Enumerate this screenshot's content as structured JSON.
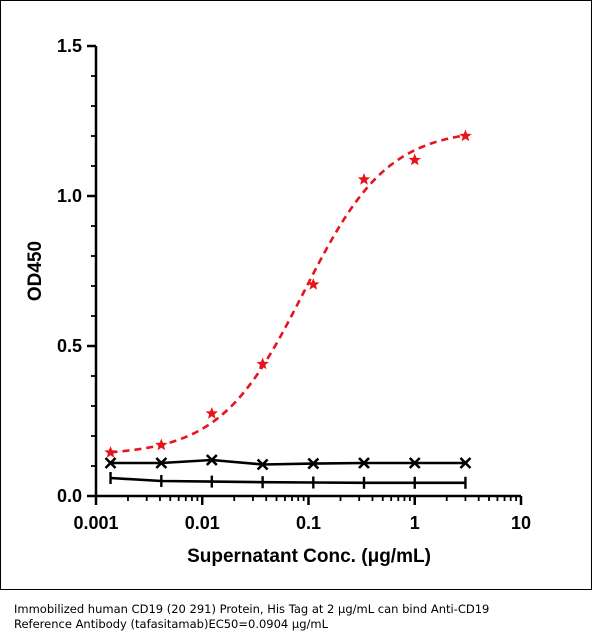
{
  "chart_data": {
    "type": "scatter",
    "title": "",
    "xlabel": "Supernatant Conc. (μg/mL)",
    "ylabel": "OD450",
    "x_scale": "log",
    "xlim": [
      0.001,
      10
    ],
    "ylim": [
      0.0,
      1.5
    ],
    "x_ticks": [
      "0.001",
      "0.01",
      "0.1",
      "1",
      "10"
    ],
    "y_ticks": [
      "0.0",
      "0.5",
      "1.0",
      "1.5"
    ],
    "grid": false,
    "series": [
      {
        "marker": "star",
        "line": "dashed fitted curve",
        "color": "#e8141c",
        "x": [
          0.00137,
          0.00412,
          0.0123,
          0.037,
          0.111,
          0.333,
          1.0,
          3.0
        ],
        "y": [
          0.145,
          0.17,
          0.275,
          0.44,
          0.705,
          1.055,
          1.12,
          1.2
        ]
      },
      {
        "marker": "x",
        "line": "solid",
        "color": "#000000",
        "x": [
          0.00137,
          0.00412,
          0.0123,
          0.037,
          0.111,
          0.333,
          1.0,
          3.0
        ],
        "y": [
          0.11,
          0.11,
          0.12,
          0.105,
          0.108,
          0.11,
          0.11,
          0.11
        ]
      },
      {
        "marker": "vertical-bar",
        "line": "solid",
        "color": "#000000",
        "x": [
          0.00137,
          0.00412,
          0.0123,
          0.037,
          0.111,
          0.333,
          1.0,
          3.0
        ],
        "y": [
          0.06,
          0.05,
          0.048,
          0.046,
          0.045,
          0.044,
          0.044,
          0.044
        ]
      }
    ],
    "fit": {
      "EC50": 0.0904,
      "bottom": 0.135,
      "top": 1.225,
      "hill": 1.1
    }
  },
  "caption": {
    "line1": "Immobilized human CD19 (20 291) Protein, His Tag at 2  μg/mL can bind  Anti-CD19",
    "line2": "Reference Antibody (tafasitamab)\u0001EC50=0.0904 μg/mL"
  }
}
